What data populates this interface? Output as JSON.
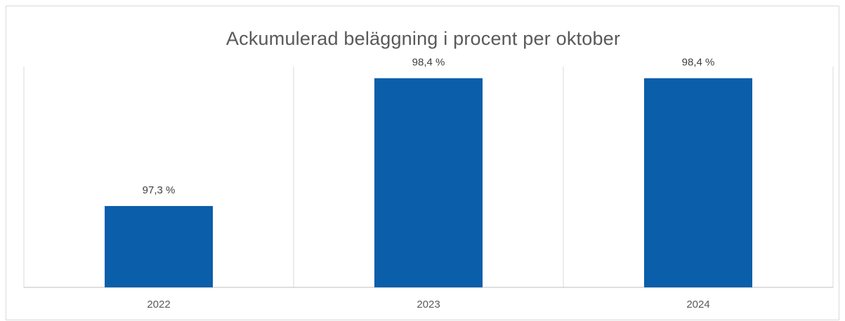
{
  "chart_data": {
    "type": "bar",
    "title": "Ackumulerad beläggning i procent per oktober",
    "categories": [
      "2022",
      "2023",
      "2024"
    ],
    "values": [
      97.3,
      98.4,
      98.4
    ],
    "value_labels": [
      "97,3 %",
      "98,4 %",
      "98,4 %"
    ],
    "xlabel": "",
    "ylabel": "",
    "ylim": [
      96.6,
      98.5
    ],
    "grid": "vertical separators",
    "legend": "none",
    "colors": {
      "bar": "#0a5eaa"
    }
  }
}
